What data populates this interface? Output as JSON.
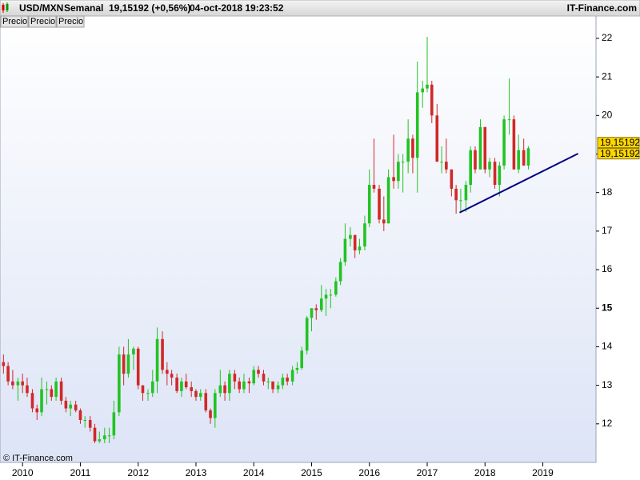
{
  "chart_data": {
    "type": "candlestick",
    "symbol": "USD/MXN",
    "period": "Semanal",
    "quote": "19,15192 (+0,56%)",
    "timestamp": "04-oct-2018 19:23:52",
    "brand": "IT-Finance.com",
    "tabs": [
      "Precio",
      "Precio",
      "Precio"
    ],
    "copyright": "© IT-Finance.com",
    "up_color": "#22c322",
    "down_color": "#d02828",
    "xlim": [
      2009.61,
      2019.92
    ],
    "xticks": [
      2010,
      2011,
      2012,
      2013,
      2014,
      2015,
      2016,
      2017,
      2018,
      2019
    ],
    "ylim": [
      11.0,
      22.58
    ],
    "yticks": [
      12,
      13,
      14,
      15,
      16,
      17,
      18,
      19,
      20,
      21,
      22
    ],
    "emphasized_ytick": 15,
    "last_price": {
      "value": 19.15192,
      "label": "19,15192"
    },
    "trendline": {
      "x": [
        2017.56,
        2019.61
      ],
      "y": [
        17.48,
        19.01
      ],
      "color": "#000080"
    },
    "x": [
      2009.67,
      2009.75,
      2009.83,
      2009.92,
      2010.0,
      2010.08,
      2010.17,
      2010.25,
      2010.33,
      2010.42,
      2010.5,
      2010.58,
      2010.67,
      2010.75,
      2010.83,
      2010.92,
      2011.0,
      2011.08,
      2011.17,
      2011.25,
      2011.33,
      2011.42,
      2011.5,
      2011.58,
      2011.67,
      2011.75,
      2011.83,
      2011.92,
      2012.0,
      2012.08,
      2012.17,
      2012.25,
      2012.33,
      2012.42,
      2012.5,
      2012.58,
      2012.67,
      2012.75,
      2012.83,
      2012.92,
      2013.0,
      2013.08,
      2013.17,
      2013.25,
      2013.33,
      2013.42,
      2013.5,
      2013.58,
      2013.67,
      2013.75,
      2013.83,
      2013.92,
      2014.0,
      2014.08,
      2014.17,
      2014.25,
      2014.33,
      2014.42,
      2014.5,
      2014.58,
      2014.67,
      2014.75,
      2014.83,
      2014.92,
      2015.0,
      2015.08,
      2015.17,
      2015.25,
      2015.33,
      2015.42,
      2015.5,
      2015.58,
      2015.67,
      2015.75,
      2015.83,
      2015.92,
      2016.0,
      2016.08,
      2016.17,
      2016.25,
      2016.33,
      2016.42,
      2016.5,
      2016.58,
      2016.67,
      2016.75,
      2016.83,
      2016.92,
      2017.0,
      2017.08,
      2017.17,
      2017.25,
      2017.33,
      2017.42,
      2017.5,
      2017.58,
      2017.67,
      2017.75,
      2017.83,
      2017.92,
      2018.0,
      2018.08,
      2018.17,
      2018.25,
      2018.33,
      2018.42,
      2018.5,
      2018.58,
      2018.67,
      2018.75
    ],
    "open": [
      13.6,
      13.5,
      13.1,
      13.0,
      13.1,
      13.0,
      12.8,
      12.4,
      12.3,
      12.9,
      12.9,
      12.7,
      13.1,
      12.6,
      12.4,
      12.5,
      12.35,
      12.1,
      12.1,
      11.9,
      11.55,
      11.6,
      11.7,
      11.7,
      12.3,
      13.8,
      13.3,
      13.8,
      13.95,
      13.0,
      12.8,
      12.8,
      13.1,
      14.2,
      13.4,
      13.3,
      13.2,
      12.85,
      13.1,
      12.95,
      12.85,
      12.7,
      12.8,
      12.35,
      12.15,
      12.8,
      13.0,
      12.8,
      13.3,
      13.1,
      12.9,
      13.1,
      13.05,
      13.4,
      13.3,
      13.1,
      13.1,
      12.9,
      13.0,
      13.2,
      13.1,
      13.4,
      13.45,
      13.9,
      14.75,
      15.0,
      14.95,
      15.25,
      15.35,
      15.35,
      15.7,
      16.2,
      16.8,
      16.9,
      16.5,
      16.6,
      17.2,
      18.2,
      18.1,
      17.3,
      17.2,
      18.4,
      18.3,
      18.8,
      18.8,
      19.4,
      18.9,
      20.6,
      20.7,
      20.8,
      20.0,
      18.8,
      18.8,
      18.6,
      18.1,
      17.8,
      17.8,
      18.2,
      19.1,
      18.6,
      19.7,
      18.6,
      18.8,
      18.2,
      18.7,
      19.9,
      19.9,
      18.6,
      19.1,
      18.7
    ],
    "high": [
      13.8,
      13.6,
      13.4,
      13.2,
      13.3,
      13.2,
      12.9,
      12.5,
      13.2,
      13.1,
      13.0,
      13.2,
      13.2,
      12.7,
      12.6,
      12.6,
      12.4,
      12.2,
      12.2,
      12.0,
      11.8,
      11.9,
      11.9,
      12.6,
      14.0,
      14.0,
      14.2,
      14.0,
      14.0,
      13.0,
      12.9,
      13.4,
      14.5,
      14.4,
      13.6,
      13.4,
      13.3,
      13.2,
      13.3,
      13.1,
      12.9,
      12.9,
      12.9,
      12.4,
      12.9,
      13.4,
      13.1,
      13.4,
      13.4,
      13.2,
      13.3,
      13.2,
      13.5,
      13.5,
      13.4,
      13.2,
      13.1,
      13.1,
      13.3,
      13.3,
      13.5,
      13.6,
      14.0,
      14.8,
      15.0,
      15.1,
      15.6,
      15.5,
      15.5,
      15.8,
      16.3,
      17.2,
      17.1,
      16.9,
      16.8,
      17.4,
      18.6,
      19.4,
      18.2,
      17.9,
      18.6,
      19.5,
      19.0,
      19.0,
      19.9,
      19.5,
      21.4,
      20.9,
      22.04,
      20.9,
      20.3,
      19.2,
      19.4,
      18.6,
      18.2,
      18.1,
      18.3,
      19.2,
      19.2,
      19.9,
      19.7,
      18.9,
      18.9,
      18.8,
      20.0,
      20.96,
      20.0,
      19.5,
      19.4,
      19.2
    ],
    "low": [
      13.3,
      13.0,
      12.9,
      12.6,
      12.8,
      12.7,
      12.3,
      12.1,
      12.2,
      12.5,
      12.6,
      12.6,
      12.5,
      12.3,
      12.2,
      12.3,
      12.0,
      11.9,
      11.8,
      11.5,
      11.5,
      11.5,
      11.5,
      11.6,
      12.2,
      13.0,
      13.2,
      13.4,
      12.9,
      12.6,
      12.6,
      12.7,
      12.8,
      13.3,
      13.0,
      13.0,
      12.8,
      12.7,
      12.9,
      12.7,
      12.6,
      12.6,
      12.3,
      12.0,
      11.9,
      12.7,
      12.6,
      12.6,
      12.9,
      12.8,
      12.8,
      12.8,
      13.0,
      13.2,
      13.0,
      12.9,
      12.8,
      12.8,
      12.9,
      13.0,
      13.0,
      13.3,
      13.4,
      13.8,
      14.4,
      14.7,
      14.9,
      14.8,
      15.0,
      15.3,
      15.6,
      16.1,
      16.6,
      16.3,
      16.4,
      16.5,
      17.1,
      18.0,
      17.2,
      17.0,
      17.2,
      18.1,
      18.1,
      18.0,
      18.5,
      18.5,
      18.0,
      20.2,
      20.6,
      19.8,
      18.8,
      18.5,
      18.5,
      17.9,
      17.45,
      17.5,
      17.5,
      18.0,
      18.5,
      18.6,
      18.5,
      18.4,
      18.1,
      17.9,
      18.6,
      19.5,
      18.6,
      18.5,
      18.7,
      18.6
    ],
    "close": [
      13.5,
      13.1,
      13.0,
      13.1,
      13.0,
      12.8,
      12.4,
      12.3,
      12.9,
      12.9,
      12.7,
      13.1,
      12.6,
      12.4,
      12.5,
      12.35,
      12.1,
      12.1,
      11.9,
      11.55,
      11.6,
      11.7,
      11.7,
      12.3,
      13.8,
      13.3,
      13.8,
      13.95,
      13.0,
      12.8,
      12.8,
      13.1,
      14.2,
      13.4,
      13.3,
      13.2,
      12.85,
      13.1,
      12.95,
      12.85,
      12.7,
      12.8,
      12.35,
      12.15,
      12.8,
      13.0,
      12.8,
      13.3,
      13.1,
      12.9,
      13.1,
      13.05,
      13.4,
      13.3,
      13.1,
      13.1,
      12.9,
      13.0,
      13.2,
      13.1,
      13.4,
      13.45,
      13.9,
      14.75,
      15.0,
      14.95,
      15.25,
      15.35,
      15.35,
      15.7,
      16.2,
      16.8,
      16.9,
      16.5,
      16.6,
      17.2,
      18.2,
      18.1,
      17.3,
      17.2,
      18.4,
      18.3,
      18.8,
      18.8,
      19.4,
      18.9,
      20.6,
      20.7,
      20.8,
      20.0,
      18.8,
      18.8,
      18.6,
      18.1,
      17.8,
      17.8,
      18.2,
      19.1,
      18.6,
      19.7,
      18.6,
      18.8,
      18.2,
      18.7,
      19.9,
      19.9,
      18.6,
      19.1,
      18.7,
      19.15
    ]
  }
}
